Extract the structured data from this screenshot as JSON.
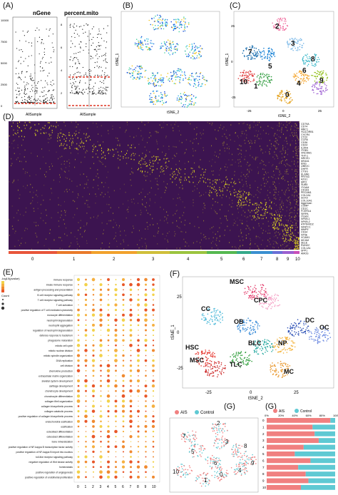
{
  "panels": {
    "A": {
      "label": "(A)",
      "violins": [
        {
          "title": "nGene",
          "xlabel": "AllSample",
          "yticks": [
            "10000",
            "7500",
            "5000",
            "2500",
            "0"
          ]
        },
        {
          "title": "percent.mito",
          "xlabel": "AllSample",
          "yticks": [
            "8",
            "6",
            "4",
            "2"
          ]
        }
      ]
    },
    "B": {
      "label": "(B)",
      "ylabel": "tSNE_1",
      "xlabel": "tSNE_2"
    },
    "C": {
      "label": "(C)",
      "ylabel": "tSNE_1",
      "xlabel": "tSNE_2",
      "xticks": [
        "-25",
        "0",
        "25"
      ],
      "yticks": [
        "25",
        "0",
        "-25"
      ],
      "clusters": [
        "2",
        "7",
        "5",
        "3",
        "8",
        "10",
        "1",
        "4",
        "9",
        "0",
        "6"
      ]
    },
    "D": {
      "label": "(D)",
      "genes": [
        "CD79A",
        "CD74",
        "MBC1",
        "HLA-DRB1",
        "CXCR4",
        "CTCF",
        "CCR5",
        "CD36",
        "CD24",
        "IL2RA",
        "ITGB1",
        "VNCAM1",
        "THY-1",
        "NRCE1",
        "MS4A1",
        "ENG",
        "UBE2C",
        "DHFR",
        "CTSG",
        "ELANE",
        "PRTN3",
        "AZU1",
        "MPO",
        "SUB5",
        "ITGAM",
        "CD163",
        "PECAM1",
        "COL2A1",
        "SOX9",
        "COL10A1",
        "Aggrecan",
        "COMP",
        "CD1C",
        "FCER1A",
        "SIRPA",
        "ITGAX",
        "NFKB-1",
        "NFKB-2",
        "ATP6V0D2",
        "NFATC1",
        "MMP9",
        "CD34",
        "NT5E",
        "VCAM1",
        "MCAM",
        "SELE",
        "RUNX2",
        "COL1A1",
        "SPP1",
        "AMOS"
      ],
      "clusters": [
        "0",
        "1",
        "2",
        "3",
        "4",
        "5",
        "6",
        "7",
        "8",
        "9",
        "10"
      ]
    },
    "E": {
      "label": "(E)",
      "terms": [
        "immune response",
        "innate immune response",
        "antigen processing and presentation",
        "B cell receptor signaling pathway",
        "T cell receptor signaling pathway",
        "T cell activation",
        "positive regulation of T cell mediated cytotoxicity",
        "monocyte differentiation",
        "neutrophil degranulation",
        "neutrophil aggregation",
        "regulation of neutrophil degranulation",
        "defense response to bacterium",
        "phagosome maturation",
        "mitotic cell cycle",
        "mitotic nuclear division",
        "mitotic spindle organization",
        "DNA replication",
        "cell division",
        "chemokine production",
        "extracellular matrix organization",
        "skeletal system development",
        "cartilage development",
        "chondrocyte development",
        "chondrocyte differentiation",
        "collagen fibril organization",
        "collagen biosynthetic process",
        "collagen catabolic process",
        "positive regulation of collagen biosynthetic process",
        "endochondral ossification",
        "ossification",
        "osteoblast differentiation",
        "osteoclast differentiation",
        "bone mineralization",
        "positive regulation of NF-kappa B transcription factor activity",
        "positive regulation of NF-kappa B import into nucleus",
        "toll-like receptor signaling pathway",
        "negative regulation of Wnt kinase activity",
        "homeostasis",
        "positive regulation of angiogenesis",
        "positive regulation of endothelial proliferation"
      ],
      "xticks": [
        "0",
        "1",
        "2",
        "3",
        "4",
        "5",
        "6",
        "7",
        "8",
        "9",
        "10"
      ],
      "legend_title": "-log10(pvalue)",
      "count_label": "Count"
    },
    "F": {
      "label": "(F)",
      "ylabel": "tSNE_1",
      "xlabel": "tSNE_2",
      "xticks": [
        "-25",
        "0",
        "25"
      ],
      "yticks": [
        "25",
        "0",
        "-25"
      ],
      "clusters": [
        "MSC",
        "CPC",
        "CC",
        "OB",
        "DC",
        "OC",
        "NP",
        "BLC",
        "HSC",
        "MSC",
        "TLC",
        "MC"
      ]
    },
    "G_left": {
      "label": "(G)",
      "legend": [
        "AIS",
        "Control"
      ],
      "clusters": [
        "7",
        "2",
        "3",
        "8",
        "5",
        "10",
        "0",
        "1",
        "4",
        "9",
        "6"
      ]
    },
    "G_right": {
      "label": "(G)",
      "legend": [
        "AIS",
        "Control"
      ],
      "xticks": [
        "0%",
        "20%",
        "40%",
        "60%",
        "80%",
        "100%"
      ],
      "rows": [
        "0",
        "1",
        "2",
        "3",
        "4",
        "5",
        "6",
        "7",
        "8",
        "9",
        "10"
      ]
    }
  },
  "colors": {
    "ais": "#f08080",
    "control": "#5fc9d3",
    "heat_low": "#3c1450",
    "heat_high": "#f5f018"
  },
  "chart_data": [
    {
      "type": "bar",
      "title": "",
      "categories": [
        "0",
        "1",
        "2",
        "3",
        "4",
        "5",
        "6",
        "7",
        "8",
        "9",
        "10"
      ],
      "series": [
        {
          "name": "AIS",
          "values": [
            0.93,
            0.67,
            0.7,
            0.76,
            0.54,
            0.41,
            0.64,
            0.46,
            0.57,
            0.61,
            0.5
          ]
        },
        {
          "name": "Control",
          "values": [
            0.07,
            0.33,
            0.3,
            0.24,
            0.46,
            0.59,
            0.36,
            0.54,
            0.43,
            0.39,
            0.5
          ]
        }
      ],
      "xlim": [
        0,
        1
      ],
      "stacked": true
    }
  ]
}
